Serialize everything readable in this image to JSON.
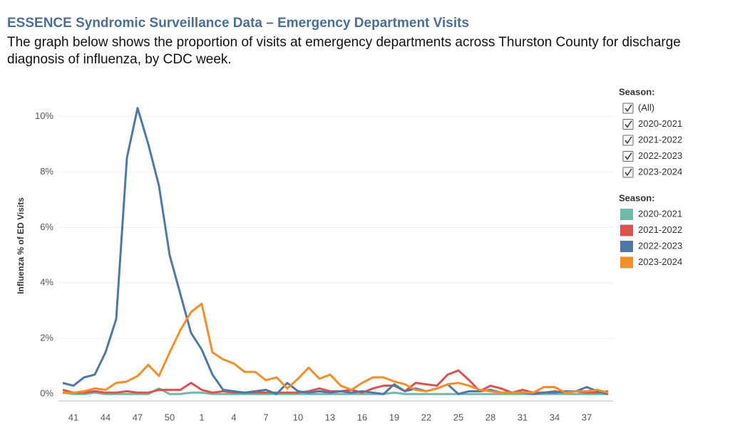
{
  "header": {
    "title": "ESSENCE Syndromic Surveillance Data – Emergency Department Visits",
    "description": "The graph below shows the proportion of visits at emergency departments across Thurston County for discharge diagnosis of influenza, by CDC week."
  },
  "filter": {
    "title": "Season:",
    "options": [
      "(All)",
      "2020-2021",
      "2021-2022",
      "2022-2023",
      "2023-2024"
    ]
  },
  "chart_data": {
    "type": "line",
    "y_label": "Influenza % of ED Visits",
    "legend_title": "Season:",
    "legend": "right",
    "grid": true,
    "categories": [
      null,
      "41",
      null,
      null,
      "44",
      null,
      null,
      "47",
      null,
      null,
      "50",
      null,
      null,
      "1",
      null,
      null,
      "4",
      null,
      null,
      "7",
      null,
      null,
      "10",
      null,
      null,
      "13",
      null,
      null,
      "16",
      null,
      null,
      "19",
      null,
      null,
      "22",
      null,
      null,
      "25",
      null,
      null,
      "28",
      null,
      null,
      "31",
      null,
      null,
      "34",
      null,
      null,
      "37",
      null,
      null
    ],
    "ylim": [
      -0.25,
      10.6
    ],
    "yticks": [
      {
        "value": 0,
        "label": "0%"
      },
      {
        "value": 2,
        "label": "2%"
      },
      {
        "value": 4,
        "label": "4%"
      },
      {
        "value": 6,
        "label": "6%"
      },
      {
        "value": 8,
        "label": "8%"
      },
      {
        "value": 10,
        "label": "10%"
      }
    ],
    "series": [
      {
        "name": "2020-2021",
        "color": "#6fb9a9",
        "values": [
          0.05,
          0,
          0,
          0.05,
          0,
          0,
          0,
          0,
          0,
          0.2,
          0,
          0,
          0.05,
          0.05,
          0,
          0,
          0,
          0,
          0,
          0,
          0,
          0,
          0,
          0,
          0,
          0,
          0,
          0,
          0,
          0,
          0,
          0.05,
          0,
          0,
          0,
          0,
          0,
          0,
          0,
          0,
          0,
          0,
          0,
          0,
          0,
          0,
          0,
          0,
          0,
          0,
          0,
          0
        ]
      },
      {
        "name": "2021-2022",
        "color": "#d9534f",
        "values": [
          0.15,
          0.05,
          0.05,
          0.1,
          0.05,
          0.05,
          0.1,
          0.05,
          0.05,
          0.15,
          0.15,
          0.15,
          0.4,
          0.15,
          0.05,
          0.1,
          0.05,
          0.05,
          0.05,
          0.05,
          0.05,
          0.05,
          0.05,
          0.1,
          0.2,
          0.1,
          0.1,
          0.15,
          0.05,
          0.2,
          0.3,
          0.3,
          0.1,
          0.4,
          0.35,
          0.3,
          0.7,
          0.85,
          0.5,
          0.1,
          0.3,
          0.2,
          0.05,
          0.15,
          0.05,
          0.05,
          0.1,
          0.05,
          0.1,
          0.05,
          0.05,
          0.1
        ]
      },
      {
        "name": "2022-2023",
        "color": "#4e79a7",
        "values": [
          0.4,
          0.3,
          0.6,
          0.7,
          1.5,
          2.7,
          8.5,
          10.3,
          9.0,
          7.5,
          5.0,
          3.6,
          2.2,
          1.6,
          0.7,
          0.15,
          0.1,
          0.05,
          0.1,
          0.15,
          0,
          0.4,
          0.1,
          0.05,
          0.1,
          0.05,
          0.1,
          0.05,
          0.1,
          0.05,
          0,
          0.35,
          0.1,
          0.2,
          0.1,
          0.2,
          0.35,
          0,
          0.1,
          0.1,
          0.15,
          0.05,
          0.05,
          0.05,
          0,
          0.05,
          0.05,
          0.1,
          0.1,
          0.25,
          0.1,
          0
        ]
      },
      {
        "name": "2023-2024",
        "color": "#f28e2b",
        "values": [
          0.05,
          0.05,
          0.1,
          0.2,
          0.15,
          0.4,
          0.45,
          0.65,
          1.05,
          0.65,
          1.5,
          2.3,
          2.95,
          3.25,
          1.5,
          1.25,
          1.1,
          0.8,
          0.8,
          0.5,
          0.6,
          0.2,
          0.55,
          0.95,
          0.55,
          0.7,
          0.3,
          0.15,
          0.4,
          0.6,
          0.6,
          0.45,
          0.35,
          0.15,
          0.1,
          0.2,
          0.35,
          0.4,
          0.3,
          0.15,
          0.1,
          0.05,
          0.05,
          0.05,
          0.05,
          0.25,
          0.25,
          0.05,
          0.1,
          0.1,
          0.15,
          0.05
        ]
      }
    ]
  }
}
